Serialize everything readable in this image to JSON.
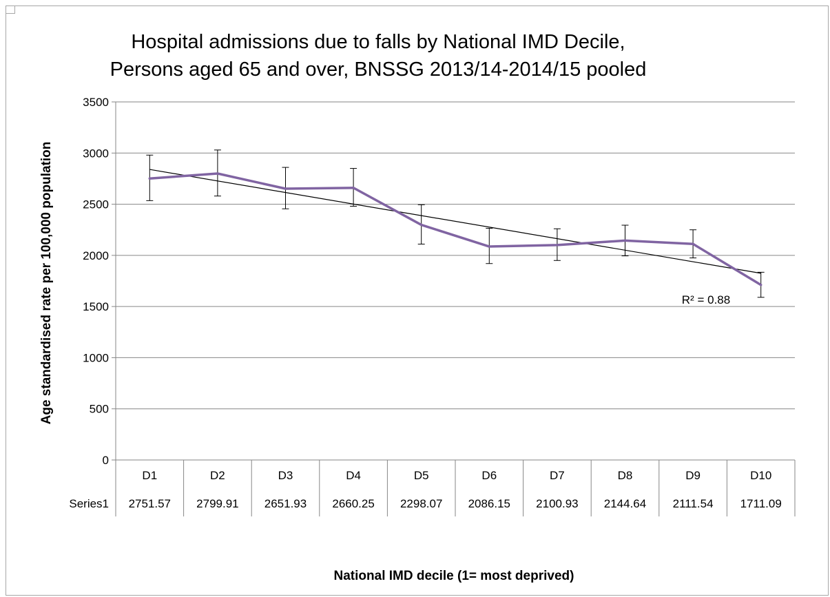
{
  "chart_data": {
    "type": "line",
    "title_line1": "Hospital admissions due to falls by National IMD Decile,",
    "title_line2": "Persons aged 65 and over, BNSSG 2013/14-2014/15 pooled",
    "xlabel": "National IMD decile (1= most deprived)",
    "ylabel": "Age standardised rate per 100,000 population",
    "ylim": [
      0,
      3500
    ],
    "yticks": [
      0,
      500,
      1000,
      1500,
      2000,
      2500,
      3000,
      3500
    ],
    "grid": true,
    "categories": [
      "D1",
      "D2",
      "D3",
      "D4",
      "D5",
      "D6",
      "D7",
      "D8",
      "D9",
      "D10"
    ],
    "series": [
      {
        "name": "Series1",
        "color": "#8064a2",
        "values": [
          2751.57,
          2799.91,
          2651.93,
          2660.25,
          2298.07,
          2086.15,
          2100.93,
          2144.64,
          2111.54,
          1711.09
        ],
        "labels": [
          "2751.57",
          "2799.91",
          "2651.93",
          "2660.25",
          "2298.07",
          "2086.15",
          "2100.93",
          "2144.64",
          "2111.54",
          "1711.09"
        ],
        "error_low": [
          2535,
          2580,
          2455,
          2480,
          2110,
          1920,
          1950,
          1995,
          1975,
          1590
        ],
        "error_high": [
          2980,
          3030,
          2860,
          2850,
          2495,
          2265,
          2260,
          2295,
          2250,
          1835
        ]
      }
    ],
    "trendline": {
      "type": "linear",
      "color": "#000000",
      "start_value": 2840,
      "end_value": 1825,
      "r_squared_label": "R² = 0.88"
    },
    "data_table": true
  }
}
